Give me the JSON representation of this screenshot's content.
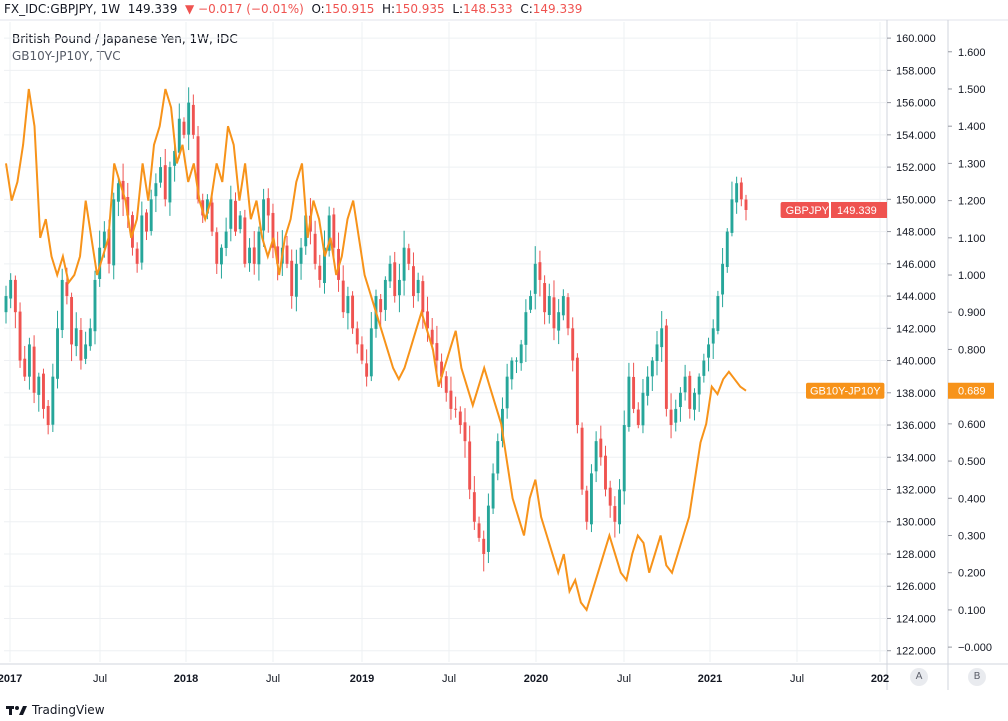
{
  "header": {
    "symbol": "FX_IDC:GBPJPY, 1W",
    "price": "149.339",
    "change": "−0.017 (−0.01%)",
    "open_label": "O:",
    "open": "150.915",
    "high_label": "H:",
    "high": "150.935",
    "low_label": "L:",
    "low": "148.533",
    "close_label": "C:",
    "close": "149.339"
  },
  "legend": {
    "title": "British Pound / Japanese Yen, 1W, IDC",
    "secondary": "GB10Y-JP10Y, TVC"
  },
  "footer": {
    "brand": "TradingView"
  },
  "axis_buttons": {
    "a": "A",
    "b": "B"
  },
  "colors": {
    "up": "#26a69a",
    "down": "#ef5350",
    "spread": "#f7931a",
    "grid": "#eef0f3"
  },
  "chart_data": {
    "type": "line",
    "x_ticks": [
      "2017",
      "Jul",
      "2018",
      "Jul",
      "2019",
      "Jul",
      "2020",
      "Jul",
      "2021",
      "Jul",
      "202"
    ],
    "x_range": [
      "2017-01",
      "2021-12"
    ],
    "left_axis": {
      "series": "GBPJPY",
      "ticks": [
        "160.000",
        "158.000",
        "156.000",
        "154.000",
        "152.000",
        "150.000",
        "148.000",
        "146.000",
        "144.000",
        "142.000",
        "140.000",
        "138.000",
        "136.000",
        "134.000",
        "132.000",
        "130.000",
        "128.000",
        "126.000",
        "124.000",
        "122.000"
      ],
      "ylim": [
        121.3,
        161.0
      ]
    },
    "right_axis": {
      "series": "GB10Y-JP10Y",
      "ticks": [
        "1.600",
        "1.500",
        "1.400",
        "1.300",
        "1.200",
        "1.100",
        "1.000",
        "0.900",
        "0.800",
        "0.700",
        "0.600",
        "0.500",
        "0.400",
        "0.300",
        "0.200",
        "0.100",
        "−0.000"
      ],
      "ylim": [
        -0.04,
        1.68
      ]
    },
    "series": [
      {
        "name": "GBPJPY",
        "style": "candlestick",
        "last_label": "GBPJPY",
        "last_value": "149.339",
        "last": 149.339,
        "close": [
          144,
          145,
          143,
          140,
          139,
          141,
          138,
          139,
          137,
          136,
          139,
          142,
          145,
          144,
          141,
          142,
          140,
          141,
          142,
          145,
          147,
          148,
          146,
          150,
          151,
          150,
          149,
          147,
          146,
          149,
          148,
          150,
          151,
          152,
          150,
          152,
          153,
          155,
          154,
          156,
          154,
          150,
          149,
          150,
          148,
          146,
          147,
          148,
          150,
          148,
          149,
          146,
          147,
          146,
          148,
          150,
          149,
          147,
          146,
          147,
          146,
          144,
          146,
          147,
          149,
          148,
          146,
          145,
          147,
          149,
          147,
          145,
          143,
          144,
          142,
          141,
          140,
          139,
          142,
          144,
          143,
          145,
          146,
          144,
          145,
          147,
          146,
          144,
          145,
          143,
          142,
          141,
          140,
          139,
          138,
          137,
          137,
          136,
          135,
          132,
          130,
          129,
          128,
          131,
          133,
          135,
          137,
          139,
          140,
          140,
          141,
          143,
          144,
          146,
          145,
          143,
          144,
          142,
          143,
          144,
          142,
          140,
          136,
          132,
          130,
          133,
          135,
          134,
          132,
          131,
          130,
          132,
          136,
          139,
          137,
          136,
          138,
          139,
          140,
          141,
          142,
          137,
          136,
          137,
          138,
          139,
          137,
          138,
          139,
          140,
          141,
          142,
          144,
          146,
          148,
          150,
          151,
          150,
          149.339
        ],
        "wick_pad": 0.9
      },
      {
        "name": "GB10Y-JP10Y",
        "last_label": "GB10Y-JP10Y",
        "last_value": "0.689",
        "last": 0.689,
        "values": [
          1.3,
          1.2,
          1.25,
          1.35,
          1.5,
          1.4,
          1.1,
          1.15,
          1.05,
          1.0,
          1.05,
          0.98,
          1.0,
          1.05,
          1.2,
          1.1,
          1.0,
          1.05,
          1.1,
          1.3,
          1.25,
          1.2,
          1.1,
          1.15,
          1.3,
          1.2,
          1.35,
          1.4,
          1.5,
          1.45,
          1.3,
          1.35,
          1.25,
          1.3,
          1.2,
          1.15,
          1.2,
          1.3,
          1.25,
          1.4,
          1.35,
          1.2,
          1.3,
          1.15,
          1.2,
          1.1,
          1.05,
          1.1,
          1.0,
          1.1,
          1.15,
          1.25,
          1.3,
          1.1,
          1.2,
          1.15,
          1.05,
          1.1,
          1.0,
          1.05,
          1.15,
          1.2,
          1.1,
          1.0,
          0.95,
          0.9,
          0.85,
          0.8,
          0.75,
          0.72,
          0.75,
          0.8,
          0.85,
          0.9,
          0.85,
          0.8,
          0.7,
          0.75,
          0.8,
          0.85,
          0.75,
          0.7,
          0.65,
          0.7,
          0.75,
          0.7,
          0.65,
          0.6,
          0.5,
          0.4,
          0.35,
          0.3,
          0.4,
          0.45,
          0.35,
          0.3,
          0.25,
          0.2,
          0.25,
          0.15,
          0.18,
          0.12,
          0.1,
          0.15,
          0.2,
          0.25,
          0.3,
          0.25,
          0.2,
          0.18,
          0.25,
          0.3,
          0.28,
          0.2,
          0.25,
          0.3,
          0.22,
          0.2,
          0.25,
          0.3,
          0.35,
          0.45,
          0.55,
          0.6,
          0.7,
          0.68,
          0.72,
          0.74,
          0.72,
          0.7,
          0.689
        ]
      }
    ],
    "grid": true
  }
}
